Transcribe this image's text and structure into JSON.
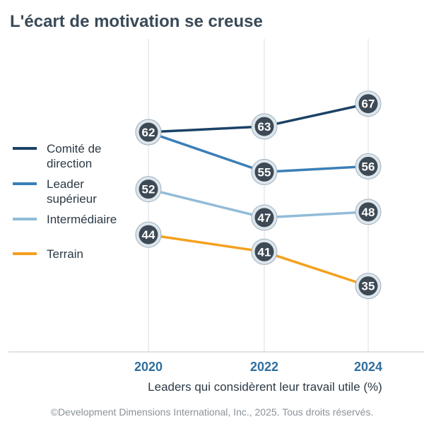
{
  "chart_data": {
    "type": "line",
    "title": "L'écart de motivation se creuse",
    "xlabel": "Leaders qui considèrent leur travail utile (%)",
    "ylabel": "",
    "x": [
      "2020",
      "2022",
      "2024"
    ],
    "ylim": [
      30,
      70
    ],
    "grid": "vertical",
    "legend_position": "left",
    "series": [
      {
        "name": "Comité de direction",
        "legend_lines": [
          "Comité de",
          "direction"
        ],
        "color": "#1b4266",
        "values": [
          62,
          63,
          67
        ]
      },
      {
        "name": "Leader supérieur",
        "legend_lines": [
          "Leader",
          "supérieur"
        ],
        "color": "#3a7fb8",
        "values": [
          62,
          55,
          56
        ]
      },
      {
        "name": "Intermédiaire",
        "legend_lines": [
          "Intermédiaire"
        ],
        "color": "#92bcd9",
        "values": [
          52,
          47,
          48
        ]
      },
      {
        "name": "Terrain",
        "legend_lines": [
          "Terrain"
        ],
        "color": "#f4a01e",
        "values": [
          44,
          41,
          35
        ]
      }
    ],
    "marker_fill": "#3d4a55",
    "marker_ring": "#dde6ec"
  },
  "footer": "©Development Dimensions International, Inc., 2025. Tous droits réservés."
}
